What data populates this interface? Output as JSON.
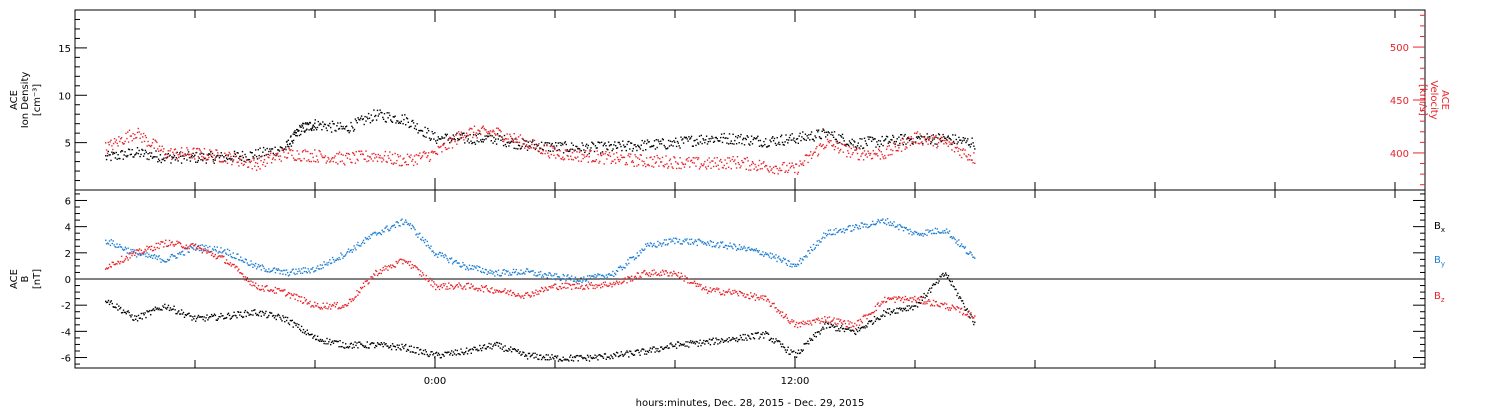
{
  "chart_data": [
    {
      "type": "scatter",
      "panel": "top",
      "ylabel_left": [
        "ACE",
        "Ion Density",
        "[cm⁻³]"
      ],
      "ylabel_right": [
        "ACE",
        "Velocity",
        "[km/s]"
      ],
      "left_ticks": [
        "5",
        "10",
        "15"
      ],
      "right_ticks": [
        "400",
        "450",
        "500"
      ],
      "ylim_left": [
        0,
        19
      ],
      "ylim_right": [
        365,
        535
      ],
      "series": [
        {
          "axis": "left",
          "color": "#000000",
          "x": [
            -11,
            -10,
            -9,
            -8,
            -7,
            -6,
            -5,
            -4.5,
            -4,
            -3,
            -2,
            -1,
            0,
            1,
            2,
            3,
            4,
            5,
            6,
            7,
            8,
            9,
            10,
            11,
            12,
            13,
            14,
            15,
            16,
            17,
            18
          ],
          "y": [
            3.5,
            4.0,
            3.5,
            3.5,
            3.5,
            3.8,
            4.5,
            6.5,
            7.0,
            6.5,
            8.0,
            7.5,
            5.5,
            5.5,
            5.5,
            4.8,
            4.6,
            4.5,
            4.6,
            4.8,
            5.0,
            5.5,
            5.5,
            5.2,
            5.5,
            6.0,
            5.0,
            5.2,
            5.5,
            5.5,
            5.0
          ]
        },
        {
          "axis": "right",
          "color": "#e8242b",
          "x": [
            -11,
            -10,
            -9,
            -8,
            -7,
            -6,
            -5,
            -4,
            -3,
            -2,
            -1,
            0,
            1,
            2,
            3,
            4,
            5,
            6,
            7,
            8,
            9,
            10,
            11,
            12,
            13,
            14,
            15,
            16,
            17,
            18
          ],
          "y": [
            405,
            420,
            400,
            400,
            397,
            390,
            400,
            398,
            395,
            398,
            393,
            400,
            420,
            420,
            410,
            400,
            398,
            395,
            393,
            392,
            390,
            392,
            388,
            385,
            410,
            400,
            400,
            415,
            410,
            395
          ]
        }
      ]
    },
    {
      "type": "scatter",
      "panel": "bottom",
      "ylabel_left": [
        "ACE",
        "B",
        "[nT]"
      ],
      "ticks": [
        "-6",
        "-4",
        "-2",
        "0",
        "2",
        "4",
        "6"
      ],
      "ylim": [
        -6.8,
        6.8
      ],
      "xlabel": "hours:minutes, Dec. 28, 2015 - Dec. 29, 2015",
      "x_ticks": [
        "0:00",
        "12:00"
      ],
      "legend": [
        {
          "label": "B",
          "sub": "x",
          "color": "#000000"
        },
        {
          "label": "B",
          "sub": "y",
          "color": "#1f7fd4"
        },
        {
          "label": "B",
          "sub": "z",
          "color": "#e8242b"
        }
      ],
      "series": [
        {
          "name": "Bx",
          "color": "#000000",
          "x": [
            -11,
            -10,
            -9,
            -8,
            -7,
            -6,
            -5,
            -4,
            -3,
            -2,
            -1,
            0,
            1,
            2,
            3,
            4,
            5,
            6,
            7,
            8,
            9,
            10,
            11,
            12,
            13,
            14,
            15,
            16,
            17,
            18
          ],
          "y": [
            -1.5,
            -3.0,
            -2.0,
            -3.0,
            -2.8,
            -2.5,
            -3.0,
            -4.5,
            -5.0,
            -5.0,
            -5.2,
            -5.8,
            -5.5,
            -5.0,
            -5.8,
            -6.0,
            -6.0,
            -5.8,
            -5.5,
            -5.0,
            -4.8,
            -4.5,
            -4.2,
            -5.8,
            -3.5,
            -4.0,
            -2.5,
            -2.0,
            0.5,
            -3.5
          ]
        },
        {
          "name": "By",
          "color": "#1f7fd4",
          "x": [
            -11,
            -10,
            -9,
            -8,
            -7,
            -6,
            -5,
            -4,
            -3,
            -2,
            -1,
            0,
            1,
            2,
            3,
            4,
            5,
            6,
            7,
            8,
            9,
            10,
            11,
            12,
            13,
            14,
            15,
            16,
            17,
            18
          ],
          "y": [
            3.0,
            2.0,
            1.5,
            2.5,
            2.2,
            1.0,
            0.5,
            0.8,
            2.0,
            3.5,
            4.5,
            2.0,
            1.0,
            0.5,
            0.6,
            0.2,
            0.0,
            0.5,
            2.5,
            3.0,
            2.8,
            2.5,
            2.0,
            1.0,
            3.5,
            4.0,
            4.5,
            3.5,
            3.8,
            1.5
          ]
        },
        {
          "name": "Bz",
          "color": "#e8242b",
          "x": [
            -11,
            -10,
            -9,
            -8,
            -7,
            -6,
            -5,
            -4,
            -3,
            -2,
            -1,
            0,
            1,
            2,
            3,
            4,
            5,
            6,
            7,
            8,
            9,
            10,
            11,
            12,
            13,
            14,
            15,
            16,
            17,
            18
          ],
          "y": [
            1.0,
            2.0,
            2.8,
            2.5,
            1.5,
            -0.5,
            -1.0,
            -2.0,
            -2.0,
            0.5,
            1.5,
            -0.5,
            -0.5,
            -0.8,
            -1.2,
            -0.5,
            -0.5,
            -0.3,
            0.5,
            0.5,
            -0.8,
            -1.0,
            -1.5,
            -3.5,
            -3.0,
            -3.5,
            -1.5,
            -1.5,
            -2.0,
            -2.8
          ]
        }
      ]
    }
  ]
}
